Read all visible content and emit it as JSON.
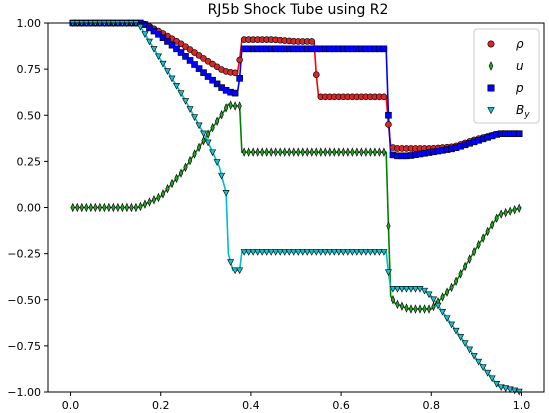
{
  "chart_data": {
    "type": "line",
    "title": "RJ5b Shock Tube using R2",
    "xlabel": "",
    "ylabel": "",
    "xlim": [
      -0.05,
      1.05
    ],
    "ylim": [
      -1.0,
      1.0
    ],
    "xticks": [
      0.0,
      0.2,
      0.4,
      0.6,
      0.8,
      1.0
    ],
    "yticks": [
      -1.0,
      -0.75,
      -0.5,
      -0.25,
      0.0,
      0.25,
      0.5,
      0.75,
      1.0
    ],
    "xtick_labels": [
      "0.0",
      "0.2",
      "0.4",
      "0.6",
      "0.8",
      "1.0"
    ],
    "ytick_labels": [
      "−1.00",
      "−0.75",
      "−0.50",
      "−0.25",
      "0.00",
      "0.25",
      "0.50",
      "0.75",
      "1.00"
    ],
    "grid": false,
    "legend_position": "top-right",
    "series": [
      {
        "name": "ρ",
        "label_main": "ρ",
        "label_sub": "",
        "marker": "circle",
        "line_color": "#ff0000",
        "marker_color": "#d62728",
        "x": [
          0.0,
          0.16,
          0.2,
          0.25,
          0.3,
          0.34,
          0.36,
          0.37,
          0.375,
          0.38,
          0.4,
          0.45,
          0.5,
          0.54,
          0.545,
          0.55,
          0.6,
          0.65,
          0.7,
          0.705,
          0.71,
          0.72,
          0.75,
          0.8,
          0.85,
          0.9,
          0.95,
          1.0
        ],
        "y": [
          1.0,
          1.0,
          0.95,
          0.88,
          0.8,
          0.74,
          0.73,
          0.73,
          0.8,
          0.91,
          0.91,
          0.91,
          0.9,
          0.9,
          0.72,
          0.6,
          0.6,
          0.6,
          0.6,
          0.45,
          0.33,
          0.32,
          0.32,
          0.32,
          0.33,
          0.37,
          0.4,
          0.4
        ]
      },
      {
        "name": "u",
        "label_main": "u",
        "label_sub": "",
        "marker": "thin_diamond",
        "line_color": "#008000",
        "marker_color": "#2ca02c",
        "x": [
          0.0,
          0.15,
          0.2,
          0.25,
          0.3,
          0.34,
          0.35,
          0.36,
          0.375,
          0.38,
          0.4,
          0.5,
          0.6,
          0.7,
          0.705,
          0.71,
          0.72,
          0.75,
          0.8,
          0.85,
          0.9,
          0.95,
          1.0
        ],
        "y": [
          0.0,
          0.0,
          0.06,
          0.2,
          0.38,
          0.52,
          0.56,
          0.55,
          0.55,
          0.3,
          0.3,
          0.3,
          0.3,
          0.3,
          -0.1,
          -0.48,
          -0.52,
          -0.55,
          -0.55,
          -0.42,
          -0.22,
          -0.04,
          0.0
        ]
      },
      {
        "name": "p",
        "label_main": "p",
        "label_sub": "",
        "marker": "square",
        "line_color": "#0000ff",
        "marker_color": "#0000ff",
        "x": [
          0.0,
          0.16,
          0.2,
          0.25,
          0.3,
          0.34,
          0.36,
          0.37,
          0.375,
          0.38,
          0.45,
          0.55,
          0.65,
          0.7,
          0.705,
          0.71,
          0.72,
          0.75,
          0.8,
          0.85,
          0.9,
          0.95,
          1.0
        ],
        "y": [
          1.0,
          1.0,
          0.93,
          0.83,
          0.72,
          0.64,
          0.62,
          0.62,
          0.7,
          0.86,
          0.86,
          0.86,
          0.86,
          0.86,
          0.5,
          0.29,
          0.28,
          0.28,
          0.3,
          0.32,
          0.36,
          0.4,
          0.4
        ]
      },
      {
        "name": "B_y",
        "label_main": "B",
        "label_sub": "y",
        "marker": "triangle_down",
        "line_color": "#00bfbf",
        "marker_color": "#17becf",
        "x": [
          0.0,
          0.15,
          0.2,
          0.25,
          0.3,
          0.33,
          0.345,
          0.35,
          0.36,
          0.375,
          0.38,
          0.45,
          0.55,
          0.65,
          0.7,
          0.705,
          0.71,
          0.75,
          0.78,
          0.8,
          0.85,
          0.9,
          0.95,
          1.0
        ],
        "y": [
          1.0,
          1.0,
          0.8,
          0.6,
          0.38,
          0.22,
          0.08,
          -0.25,
          -0.34,
          -0.34,
          -0.24,
          -0.24,
          -0.24,
          -0.24,
          -0.24,
          -0.35,
          -0.44,
          -0.44,
          -0.44,
          -0.48,
          -0.65,
          -0.82,
          -0.97,
          -1.0
        ]
      }
    ]
  }
}
